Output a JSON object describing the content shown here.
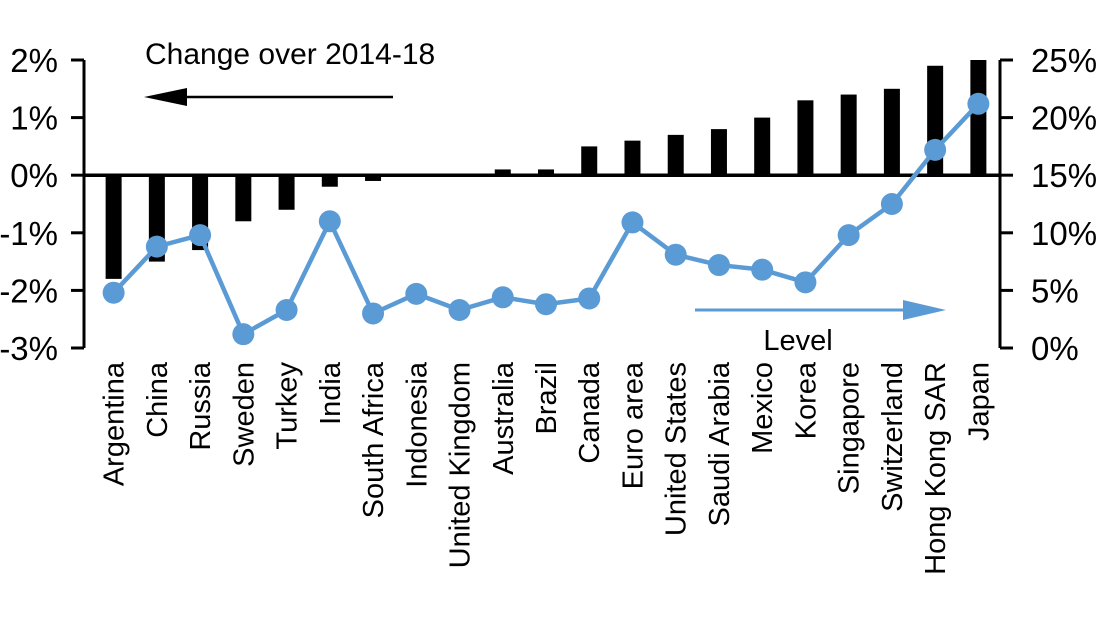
{
  "chart_data": {
    "type": "bar",
    "subtype": "combo-bar-line-dual-axis",
    "title": "",
    "categories": [
      "Argentina",
      "China",
      "Russia",
      "Sweden",
      "Turkey",
      "India",
      "South Africa",
      "Indonesia",
      "United Kingdom",
      "Australia",
      "Brazil",
      "Canada",
      "Euro area",
      "United States",
      "Saudi Arabia",
      "Mexico",
      "Korea",
      "Singapore",
      "Switzerland",
      "Hong Kong SAR",
      "Japan"
    ],
    "series": [
      {
        "name": "Change over 2014-18",
        "type": "bar",
        "axis": "left",
        "color": "#000000",
        "values": [
          -1.8,
          -1.5,
          -1.3,
          -0.8,
          -0.6,
          -0.2,
          -0.1,
          0,
          0,
          0.1,
          0.1,
          0.5,
          0.6,
          0.7,
          0.8,
          1.0,
          1.3,
          1.4,
          1.5,
          1.9,
          2.0
        ]
      },
      {
        "name": "Level",
        "type": "line",
        "axis": "right",
        "color": "#5B9BD5",
        "values": [
          4.8,
          8.8,
          9.8,
          1.2,
          3.3,
          11.0,
          3.0,
          4.7,
          3.3,
          4.4,
          3.8,
          4.3,
          10.9,
          8.1,
          7.2,
          6.8,
          5.7,
          9.8,
          12.5,
          17.2,
          21.2
        ]
      }
    ],
    "left_axis": {
      "min": -3,
      "max": 2,
      "tick_step": 1,
      "tick_labels": [
        "2%",
        "1%",
        "0%",
        "-1%",
        "-2%",
        "-3%"
      ]
    },
    "right_axis": {
      "min": 0,
      "max": 25,
      "tick_step": 5,
      "tick_labels": [
        "25%",
        "20%",
        "15%",
        "10%",
        "5%",
        "0%"
      ]
    },
    "grid": false,
    "legend_position": "none",
    "annotations": [
      {
        "text": "Change over 2014-18",
        "arrow": "left",
        "color": "#000000"
      },
      {
        "text": "Level",
        "arrow": "right",
        "color": "#5B9BD5"
      }
    ]
  }
}
